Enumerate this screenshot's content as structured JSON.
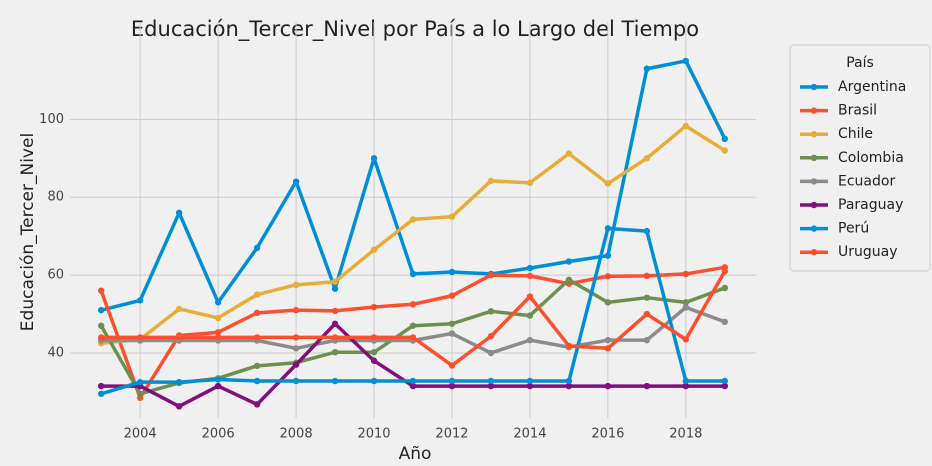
{
  "chart_data": {
    "type": "line",
    "title": "Educación_Tercer_Nivel por País a lo Largo del Tiempo",
    "x_label": "Año",
    "y_label": "Educación_Tercer_Nivel",
    "legend_title": "País",
    "x": [
      2003,
      2004,
      2005,
      2006,
      2007,
      2008,
      2009,
      2010,
      2011,
      2012,
      2013,
      2014,
      2015,
      2016,
      2017,
      2018,
      2019
    ],
    "xlim": [
      2002.2,
      2019.8
    ],
    "xticks": [
      2004,
      2006,
      2008,
      2010,
      2012,
      2014,
      2016,
      2018
    ],
    "ylim": [
      23.3,
      125
    ],
    "yticks": [
      40,
      60,
      80,
      100
    ],
    "grid": true,
    "legend": "outside right",
    "series": [
      {
        "name": "Argentina",
        "color": "#008fd5",
        "values": [
          51,
          53.5,
          76,
          53,
          67,
          84,
          56.5,
          90,
          60.3,
          60.8,
          60.3,
          61.8,
          63.5,
          65,
          113,
          115,
          95
        ]
      },
      {
        "name": "Brasil",
        "color": "#fc4f30",
        "values": [
          56,
          28.5,
          44.5,
          45.3,
          50.3,
          51,
          50.8,
          51.8,
          52.5,
          54.7,
          60,
          59.8,
          57.8,
          59.7,
          59.8,
          60.3,
          62
        ]
      },
      {
        "name": "Chile",
        "color": "#e5ae38",
        "values": [
          42.5,
          43.5,
          51.3,
          49,
          55,
          57.5,
          58.3,
          66.5,
          74.3,
          75,
          84.2,
          83.7,
          91.2,
          83.5,
          90,
          98.3,
          92
        ]
      },
      {
        "name": "Colombia",
        "color": "#6d904f",
        "values": [
          47,
          29.5,
          32.3,
          33.5,
          36.7,
          37.5,
          40.2,
          40.2,
          47,
          47.5,
          50.7,
          49.6,
          58.8,
          53,
          54.2,
          53,
          56.7
        ]
      },
      {
        "name": "Ecuador",
        "color": "#8b8b8b",
        "values": [
          43.2,
          43.2,
          43.2,
          43.2,
          43.2,
          41.2,
          43.2,
          43.2,
          43.2,
          45,
          40,
          43.3,
          41.5,
          43.3,
          43.3,
          51.7,
          48
        ]
      },
      {
        "name": "Paraguay",
        "color": "#810f7c",
        "values": [
          31.5,
          31.5,
          26.3,
          31.5,
          26.8,
          37,
          47.5,
          38,
          31.5,
          31.5,
          31.5,
          31.5,
          31.5,
          31.5,
          31.5,
          31.5,
          31.5
        ]
      },
      {
        "name": "Perú",
        "color": "#008fd5",
        "values": [
          29.5,
          32.5,
          32.5,
          33.2,
          32.8,
          32.8,
          32.8,
          32.8,
          32.8,
          32.8,
          32.8,
          32.8,
          32.8,
          72,
          71.3,
          32.8,
          32.8
        ]
      },
      {
        "name": "Uruguay",
        "color": "#fc4f30",
        "values": [
          44,
          44,
          44,
          44,
          44,
          44,
          44,
          44,
          44,
          36.8,
          44.3,
          54.5,
          41.8,
          41.2,
          50,
          43.5,
          61
        ]
      }
    ]
  }
}
